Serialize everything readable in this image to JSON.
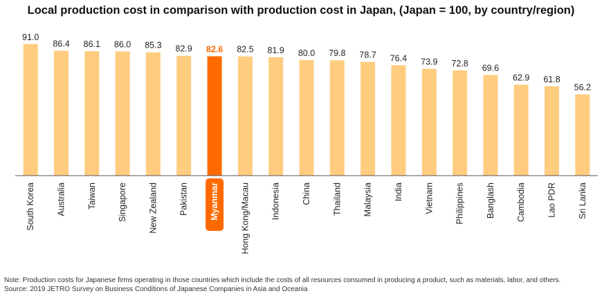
{
  "chart_data": {
    "type": "bar",
    "title": "Local production cost in comparison with production cost in Japan, (Japan = 100, by country/region)",
    "categories": [
      "South Korea",
      "Australia",
      "Taiwan",
      "Singapore",
      "New Zealand",
      "Pakistan",
      "Myanmar",
      "Hong Kong/Macau",
      "Indonesia",
      "China",
      "Thailand",
      "Malaysia",
      "India",
      "Vietnam",
      "Philippines",
      "Banglash",
      "Cambodia",
      "Lao PDR",
      "Sri Lanka"
    ],
    "values": [
      91.0,
      86.4,
      86.1,
      86.0,
      85.3,
      82.9,
      82.6,
      82.5,
      81.9,
      80.0,
      79.8,
      78.7,
      76.4,
      73.9,
      72.8,
      69.6,
      62.9,
      61.8,
      56.2
    ],
    "value_labels": [
      "91.0",
      "86.4",
      "86.1",
      "86.0",
      "85.3",
      "82.9",
      "82.6",
      "82.5",
      "81.9",
      "80.0",
      "79.8",
      "78.7",
      "76.4",
      "73.9",
      "72.8",
      "69.6",
      "62.9",
      "61.8",
      "56.2"
    ],
    "highlight_category": "Myanmar",
    "ylim": [
      0,
      100
    ],
    "grid": false,
    "colors": {
      "bar": "#FFCC80",
      "highlight": "#FF6A00",
      "highlight_label_text": "#FFFFFF",
      "axis": "#555555"
    }
  },
  "notes": {
    "note": "Note: Production costs for Japanese firms operating in those countries which include the costs of all resources consumed in producing a product, such as materials, labor, and others.",
    "source": "Source: 2019 JETRO Survey on Business Conditions of Japanese Companies in Asia and Oceania"
  }
}
